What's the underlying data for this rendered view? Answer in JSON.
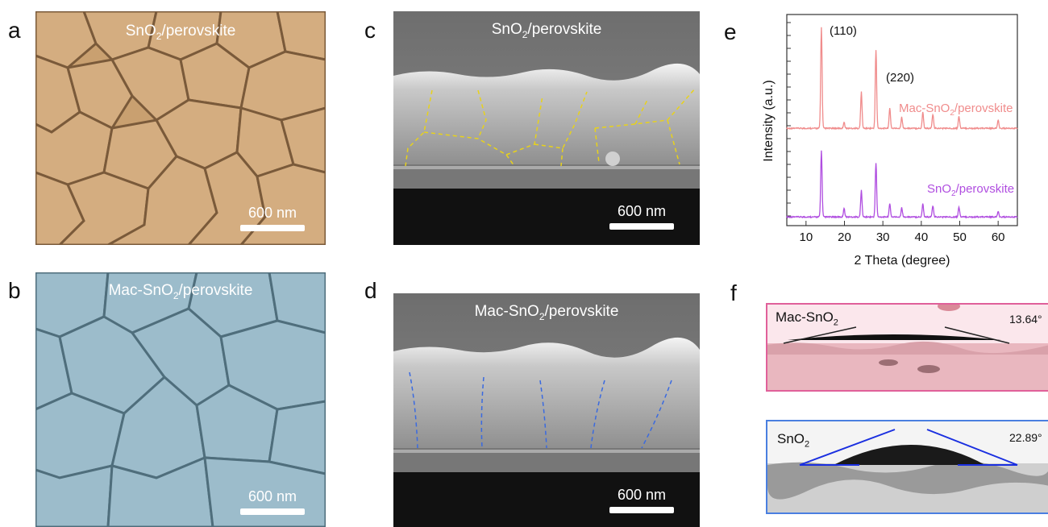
{
  "panels": {
    "a": {
      "letter": "a",
      "caption_main": "SnO",
      "caption_sub": "2",
      "caption_rest": "/perovskite",
      "scalebar": "600 nm"
    },
    "b": {
      "letter": "b",
      "caption_main": "Mac-SnO",
      "caption_sub": "2",
      "caption_rest": "/perovskite",
      "scalebar": "600 nm"
    },
    "c": {
      "letter": "c",
      "caption_main": "SnO",
      "caption_sub": "2",
      "caption_rest": "/perovskite",
      "scalebar": "600 nm"
    },
    "d": {
      "letter": "d",
      "caption_main": "Mac-SnO",
      "caption_sub": "2",
      "caption_rest": "/perovskite",
      "scalebar": "600 nm"
    },
    "e": {
      "letter": "e"
    },
    "f": {
      "letter": "f"
    }
  },
  "chart_data": {
    "type": "line",
    "xlabel": "2 Theta (degree)",
    "ylabel": "Intensity (a.u.)",
    "xlim": [
      5,
      65
    ],
    "xticks": [
      "10",
      "20",
      "30",
      "40",
      "50",
      "60"
    ],
    "peak_annotations": [
      "(110)",
      "(220)"
    ],
    "series": [
      {
        "name_main": "Mac-SnO",
        "name_sub": "2",
        "name_rest": "/perovskite",
        "color": "#f08c8c",
        "peaks_x": [
          14.0,
          19.9,
          24.4,
          28.2,
          31.8,
          34.9,
          40.4,
          43.0,
          49.8,
          60.0
        ],
        "peaks_rel": [
          1.0,
          0.06,
          0.36,
          0.78,
          0.2,
          0.11,
          0.16,
          0.14,
          0.12,
          0.08
        ]
      },
      {
        "name_main": "SnO",
        "name_sub": "2",
        "name_rest": "/perovskite",
        "color": "#b04ee0",
        "peaks_x": [
          14.0,
          19.9,
          24.4,
          28.2,
          31.8,
          34.9,
          40.4,
          43.0,
          49.8,
          60.0
        ],
        "peaks_rel": [
          1.0,
          0.13,
          0.4,
          0.82,
          0.2,
          0.14,
          0.2,
          0.17,
          0.15,
          0.08
        ]
      }
    ]
  },
  "contact_angle": {
    "top": {
      "name_main": "Mac-SnO",
      "name_sub": "2",
      "angle": "13.64°",
      "border": "#e0609a"
    },
    "bottom": {
      "name_main": "SnO",
      "name_sub": "2",
      "angle": "22.89°",
      "border": "#4a7fe0"
    }
  },
  "colors": {
    "grain_a": "#c9a070",
    "grain_b": "#8fb2c2"
  }
}
